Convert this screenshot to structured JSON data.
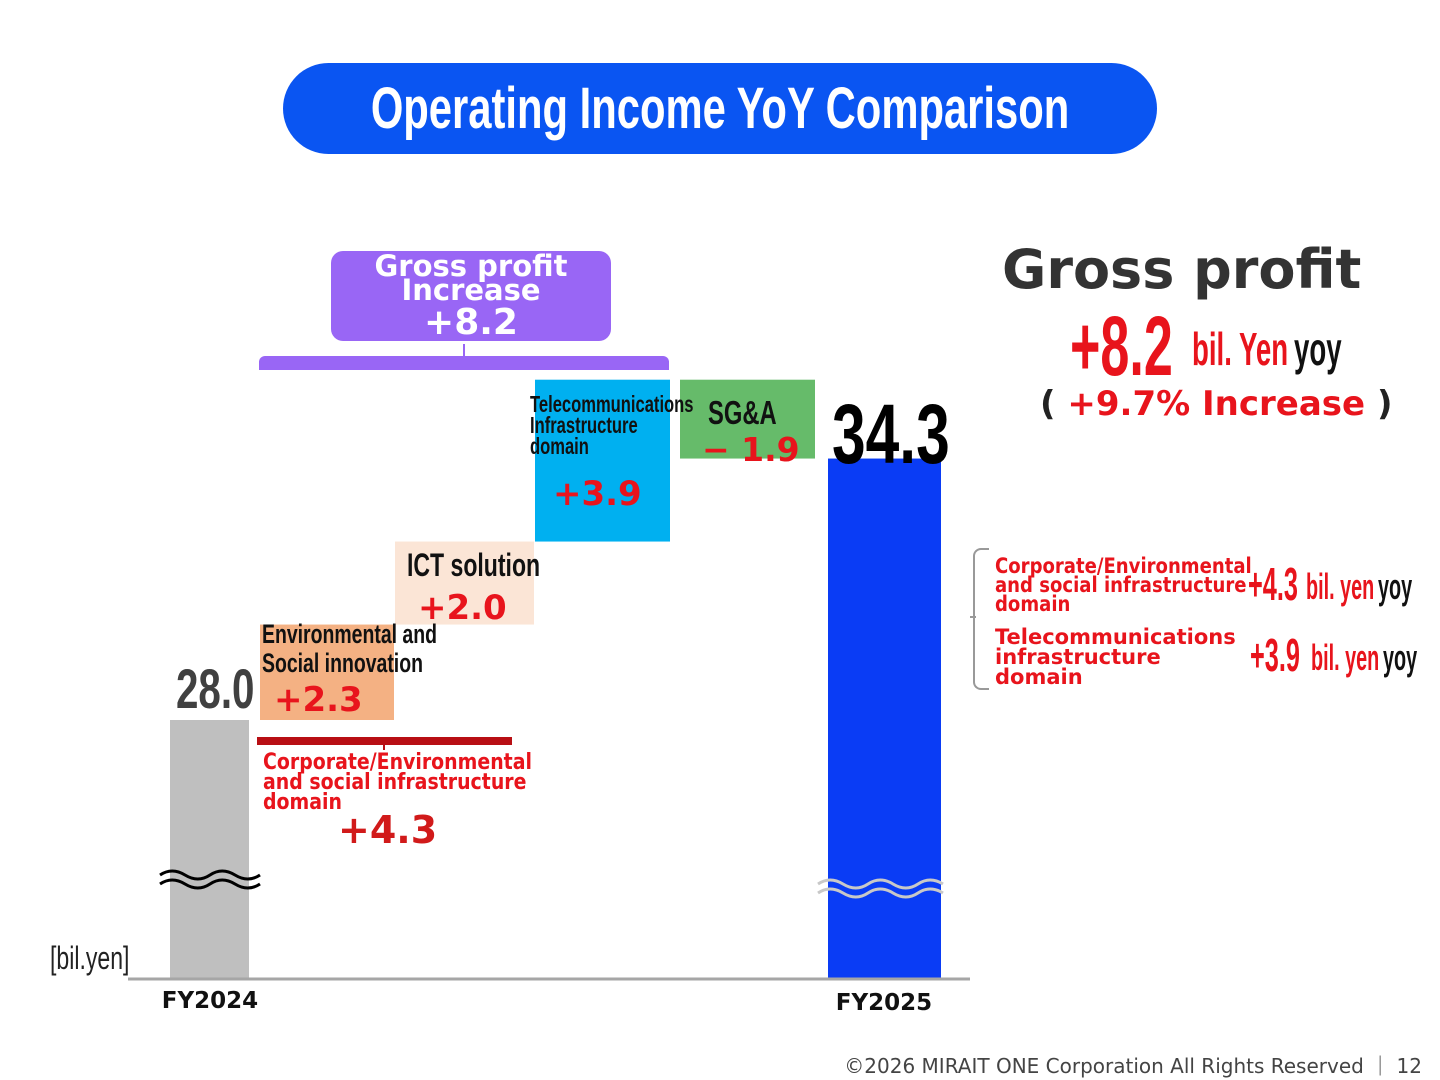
{
  "title": "Operating Income YoY Comparison",
  "gross_profit_box": {
    "line1": "Gross profit",
    "line2": "Increase",
    "value": "+8.2"
  },
  "unit_label": "[bil.yen]",
  "steps": {
    "env_social": {
      "label1": "Environmental and",
      "label2": "Social innovation",
      "value": "+2.3"
    },
    "ict": {
      "label": "ICT solution",
      "value": "+2.0"
    },
    "telecom": {
      "label1": "Telecommunications",
      "label2": "Infrastructure",
      "label3": "domain",
      "value": "+3.9"
    },
    "sga": {
      "label": "SG&A",
      "value": "− 1.9"
    }
  },
  "corp_domain": {
    "label1": "Corporate/Environmental",
    "label2": "and social infrastructure",
    "label3": "domain",
    "value": "+4.3"
  },
  "right_panel": {
    "heading": "Gross profit",
    "big_value": "+8.2",
    "unit": "bil. Yen",
    "yoy": "yoy",
    "pct_open": "(",
    "pct_text": "+9.7% Increase",
    "pct_close": ")",
    "breakdown": [
      {
        "label1": "Corporate/Environmental",
        "label2": "and social infrastructure",
        "label3": "domain",
        "value": "+4.3",
        "unit": "bil. yen",
        "yoy": "yoy"
      },
      {
        "label1": "Telecommunications",
        "label2": "infrastructure",
        "label3": "domain",
        "value": "+3.9",
        "unit": "bil. yen",
        "yoy": "yoy"
      }
    ]
  },
  "footer": "©2026 MIRAIT ONE Corporation All Rights Reserved ｜ 12",
  "colors": {
    "fy2024": "#bfbfbf",
    "env": "#f4b183",
    "ict": "#fbe5d6",
    "telecom": "#00b0f0",
    "sga": "#66bb6a",
    "fy2025": "#0a3cf5",
    "accent": "#0a55f2",
    "purple": "#9966f5",
    "red": "#e8141c"
  },
  "chart_data": {
    "type": "waterfall",
    "unit": "bil.yen",
    "categories": [
      "FY2024",
      "Environmental and Social innovation",
      "ICT solution",
      "Telecommunications Infrastructure domain",
      "SG&A",
      "FY2025"
    ],
    "values": [
      28.0,
      2.3,
      2.0,
      3.9,
      -1.9,
      34.3
    ],
    "value_labels": [
      "28.0",
      "+2.3",
      "+2.0",
      "+3.9",
      "− 1.9",
      "34.3"
    ],
    "axis_break": true
  }
}
